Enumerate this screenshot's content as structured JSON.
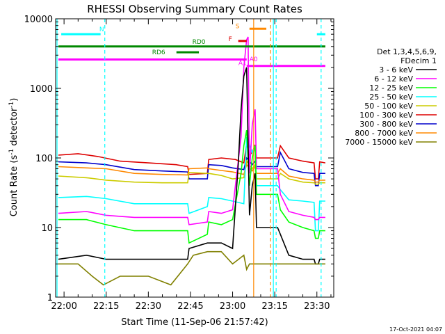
{
  "chart_data": {
    "type": "line",
    "title": "RHESSI Observing Summary Count Rates",
    "xlabel": "Start Time (11-Sep-06 21:57:42)",
    "ylabel_main": "Count Rate (s",
    "ylabel_sup1": "-1",
    "ylabel_mid": " detector",
    "ylabel_sup2": "-1",
    "ylabel_end": ")",
    "y_scale": "log",
    "ylim": [
      1,
      10000
    ],
    "xlim_minutes": [
      -3,
      96
    ],
    "x_ticks": [
      {
        "label": "22:00",
        "v": 0
      },
      {
        "label": "22:15",
        "v": 15
      },
      {
        "label": "22:30",
        "v": 30
      },
      {
        "label": "22:45",
        "v": 45
      },
      {
        "label": "23:00",
        "v": 60
      },
      {
        "label": "23:15",
        "v": 75
      },
      {
        "label": "23:30",
        "v": 90
      }
    ],
    "y_ticks": [
      {
        "label": "1",
        "v": 1
      },
      {
        "label": "10",
        "v": 10
      },
      {
        "label": "100",
        "v": 100
      },
      {
        "label": "1000",
        "v": 1000
      },
      {
        "label": "10000",
        "v": 10000
      }
    ],
    "legend": {
      "placement": "right",
      "header1": "Det 1,3,4,5,6,9,",
      "header2": "FDecim 1",
      "entries": [
        {
          "label": "3 - 6 keV",
          "color": "#000000"
        },
        {
          "label": "6 - 12 keV",
          "color": "#ff00ff"
        },
        {
          "label": "12 - 25 keV",
          "color": "#00ff00"
        },
        {
          "label": "25 - 50 keV",
          "color": "#00ffff"
        },
        {
          "label": "50 - 100 keV",
          "color": "#cccc00"
        },
        {
          "label": "100 - 300 keV",
          "color": "#dd0000"
        },
        {
          "label": "300 - 800 keV",
          "color": "#0000cc"
        },
        {
          "label": "800 - 7000 keV",
          "color": "#ff8800"
        },
        {
          "label": "7000 - 15000 keV",
          "color": "#808000"
        }
      ]
    },
    "series": [
      {
        "color": "#dd0000",
        "points": [
          [
            -2,
            110
          ],
          [
            5,
            115
          ],
          [
            12,
            105
          ],
          [
            20,
            90
          ],
          [
            30,
            85
          ],
          [
            40,
            80
          ],
          [
            44,
            75
          ],
          [
            44.5,
            58
          ],
          [
            51,
            60
          ],
          [
            51.5,
            95
          ],
          [
            56,
            100
          ],
          [
            61,
            95
          ],
          [
            64,
            85
          ],
          [
            65,
            160
          ],
          [
            66,
            110
          ],
          [
            67,
            120
          ],
          [
            68,
            155
          ],
          [
            68.5,
            100
          ],
          [
            76,
            100
          ],
          [
            77,
            150
          ],
          [
            80,
            100
          ],
          [
            85,
            90
          ],
          [
            89,
            85
          ],
          [
            89.5,
            50
          ],
          [
            90.5,
            50
          ],
          [
            91,
            88
          ],
          [
            93,
            85
          ]
        ]
      },
      {
        "color": "#0000cc",
        "points": [
          [
            -2,
            88
          ],
          [
            8,
            85
          ],
          [
            15,
            80
          ],
          [
            25,
            68
          ],
          [
            35,
            65
          ],
          [
            44,
            63
          ],
          [
            44.5,
            50
          ],
          [
            51,
            50
          ],
          [
            51.5,
            80
          ],
          [
            56,
            78
          ],
          [
            60,
            72
          ],
          [
            64,
            68
          ],
          [
            65,
            100
          ],
          [
            67,
            80
          ],
          [
            68,
            90
          ],
          [
            68.5,
            75
          ],
          [
            76,
            75
          ],
          [
            77,
            120
          ],
          [
            80,
            70
          ],
          [
            85,
            62
          ],
          [
            89,
            60
          ],
          [
            89.5,
            40
          ],
          [
            90.5,
            40
          ],
          [
            91,
            60
          ],
          [
            93,
            60
          ]
        ]
      },
      {
        "color": "#ff8800",
        "points": [
          [
            -2,
            75
          ],
          [
            8,
            72
          ],
          [
            15,
            70
          ],
          [
            25,
            60
          ],
          [
            35,
            58
          ],
          [
            44,
            57
          ],
          [
            44.5,
            70
          ],
          [
            51,
            72
          ],
          [
            51.5,
            70
          ],
          [
            56,
            66
          ],
          [
            60,
            63
          ],
          [
            64,
            58
          ],
          [
            65,
            80
          ],
          [
            67,
            65
          ],
          [
            68,
            75
          ],
          [
            68.5,
            60
          ],
          [
            76,
            60
          ],
          [
            77,
            70
          ],
          [
            80,
            55
          ],
          [
            85,
            50
          ],
          [
            89,
            48
          ],
          [
            89.5,
            45
          ],
          [
            90.5,
            45
          ],
          [
            91,
            48
          ],
          [
            93,
            48
          ]
        ]
      },
      {
        "color": "#cccc00",
        "points": [
          [
            -2,
            55
          ],
          [
            8,
            52
          ],
          [
            15,
            48
          ],
          [
            25,
            45
          ],
          [
            35,
            44
          ],
          [
            44,
            44
          ],
          [
            44.5,
            62
          ],
          [
            51,
            60
          ],
          [
            51.5,
            60
          ],
          [
            56,
            56
          ],
          [
            60,
            50
          ],
          [
            64,
            52
          ],
          [
            65,
            90
          ],
          [
            67,
            70
          ],
          [
            68,
            80
          ],
          [
            68.5,
            50
          ],
          [
            76,
            50
          ],
          [
            77,
            60
          ],
          [
            80,
            50
          ],
          [
            85,
            45
          ],
          [
            89,
            44
          ],
          [
            89.5,
            42
          ],
          [
            90.5,
            42
          ],
          [
            91,
            44
          ],
          [
            93,
            44
          ]
        ]
      },
      {
        "color": "#00ffff",
        "points": [
          [
            -2,
            27
          ],
          [
            8,
            28
          ],
          [
            15,
            26
          ],
          [
            25,
            22
          ],
          [
            35,
            22
          ],
          [
            44,
            22
          ],
          [
            44.5,
            16
          ],
          [
            51,
            20
          ],
          [
            51.5,
            27
          ],
          [
            56,
            26
          ],
          [
            60,
            24
          ],
          [
            64,
            22
          ],
          [
            65,
            200
          ],
          [
            67,
            120
          ],
          [
            68,
            150
          ],
          [
            68.5,
            40
          ],
          [
            76,
            40
          ],
          [
            77,
            35
          ],
          [
            80,
            25
          ],
          [
            85,
            24
          ],
          [
            89,
            23
          ],
          [
            89.5,
            9
          ],
          [
            90.5,
            9
          ],
          [
            91,
            24
          ],
          [
            93,
            24
          ]
        ]
      },
      {
        "color": "#ff00ff",
        "points": [
          [
            -2,
            16
          ],
          [
            8,
            17
          ],
          [
            15,
            15
          ],
          [
            25,
            14
          ],
          [
            35,
            14
          ],
          [
            44,
            14
          ],
          [
            44.5,
            11
          ],
          [
            51,
            12
          ],
          [
            51.5,
            17
          ],
          [
            56,
            16
          ],
          [
            60,
            18
          ],
          [
            63,
            200
          ],
          [
            64,
            2000
          ],
          [
            65,
            5000
          ],
          [
            65.5,
            5500
          ],
          [
            66,
            60
          ],
          [
            67,
            300
          ],
          [
            68,
            500
          ],
          [
            68.5,
            70
          ],
          [
            76,
            70
          ],
          [
            77,
            30
          ],
          [
            80,
            17
          ],
          [
            85,
            15
          ],
          [
            89,
            14
          ],
          [
            89.5,
            13
          ],
          [
            90.5,
            13
          ],
          [
            91,
            14
          ],
          [
            93,
            14
          ]
        ]
      },
      {
        "color": "#00ff00",
        "points": [
          [
            -2,
            13
          ],
          [
            8,
            13
          ],
          [
            15,
            11
          ],
          [
            25,
            9
          ],
          [
            35,
            9
          ],
          [
            44,
            9
          ],
          [
            44.5,
            6
          ],
          [
            51,
            8
          ],
          [
            51.5,
            12
          ],
          [
            56,
            11
          ],
          [
            60,
            13
          ],
          [
            63,
            60
          ],
          [
            64,
            150
          ],
          [
            65,
            250
          ],
          [
            66,
            40
          ],
          [
            67,
            100
          ],
          [
            68,
            150
          ],
          [
            68.5,
            30
          ],
          [
            76,
            30
          ],
          [
            77,
            18
          ],
          [
            80,
            12
          ],
          [
            85,
            10
          ],
          [
            89,
            9
          ],
          [
            89.5,
            7
          ],
          [
            90.5,
            7
          ],
          [
            91,
            9
          ],
          [
            93,
            9
          ]
        ]
      },
      {
        "color": "#000000",
        "points": [
          [
            -2,
            3.5
          ],
          [
            8,
            4
          ],
          [
            15,
            3.5
          ],
          [
            25,
            3.5
          ],
          [
            35,
            3.5
          ],
          [
            44,
            3.5
          ],
          [
            44.5,
            5
          ],
          [
            51,
            6
          ],
          [
            51.5,
            6
          ],
          [
            56,
            6
          ],
          [
            60,
            5
          ],
          [
            62,
            80
          ],
          [
            63,
            500
          ],
          [
            64,
            1500
          ],
          [
            65,
            2000
          ],
          [
            66,
            15
          ],
          [
            67,
            40
          ],
          [
            68,
            60
          ],
          [
            68.5,
            10
          ],
          [
            76,
            10
          ],
          [
            77,
            8
          ],
          [
            80,
            4
          ],
          [
            85,
            3.5
          ],
          [
            89,
            3.5
          ],
          [
            89.5,
            3
          ],
          [
            90.5,
            3
          ],
          [
            91,
            3.5
          ],
          [
            93,
            3.5
          ]
        ]
      },
      {
        "color": "#808000",
        "points": [
          [
            -2,
            3
          ],
          [
            5,
            3
          ],
          [
            10,
            2
          ],
          [
            14,
            1.5
          ],
          [
            20,
            2
          ],
          [
            30,
            2
          ],
          [
            38,
            1.5
          ],
          [
            44,
            3
          ],
          [
            46,
            4
          ],
          [
            51,
            4.5
          ],
          [
            56,
            4.5
          ],
          [
            60,
            3
          ],
          [
            64,
            4
          ],
          [
            65,
            2.5
          ],
          [
            66,
            3
          ],
          [
            67,
            3
          ],
          [
            76,
            3
          ],
          [
            78,
            3
          ],
          [
            82,
            3
          ],
          [
            86,
            3
          ],
          [
            89,
            3
          ],
          [
            91,
            3
          ],
          [
            93,
            3
          ]
        ]
      }
    ],
    "flag_bars": [
      {
        "label": "N",
        "color": "#00ffff",
        "segments": [
          [
            -1,
            13
          ],
          [
            90,
            93
          ]
        ]
      },
      {
        "label": "RD0",
        "color": "#008800",
        "segments": [
          [
            -2,
            93
          ]
        ]
      },
      {
        "label": "RD6",
        "color": "#008800",
        "segments": [
          [
            40,
            48
          ]
        ]
      },
      {
        "label": "A1",
        "color": "#ff00ff",
        "segments": [
          [
            -2,
            65
          ]
        ]
      },
      {
        "label": "A0",
        "color": "#ff00ff",
        "segments": [
          [
            65,
            93
          ]
        ]
      },
      {
        "label": "F",
        "color": "#dd0000",
        "segments": [
          [
            62,
            65
          ]
        ]
      },
      {
        "label": "S",
        "color": "#ff8800",
        "segments": [
          [
            66,
            72
          ]
        ]
      }
    ],
    "vlines": [
      {
        "x": -2.5,
        "color": "#00ffff",
        "dash": false
      },
      {
        "x": 14.5,
        "color": "#00ffff",
        "dash": true
      },
      {
        "x": 67.5,
        "color": "#ff8800",
        "dash": false
      },
      {
        "x": 73.5,
        "color": "#ff8800",
        "dash": true
      },
      {
        "x": 74.5,
        "color": "#00ffff",
        "dash": false
      },
      {
        "x": 75.5,
        "color": "#00ffff",
        "dash": true
      },
      {
        "x": 91.5,
        "color": "#00ffff",
        "dash": true
      }
    ]
  },
  "timestamp": "17-Oct-2021 04:07"
}
